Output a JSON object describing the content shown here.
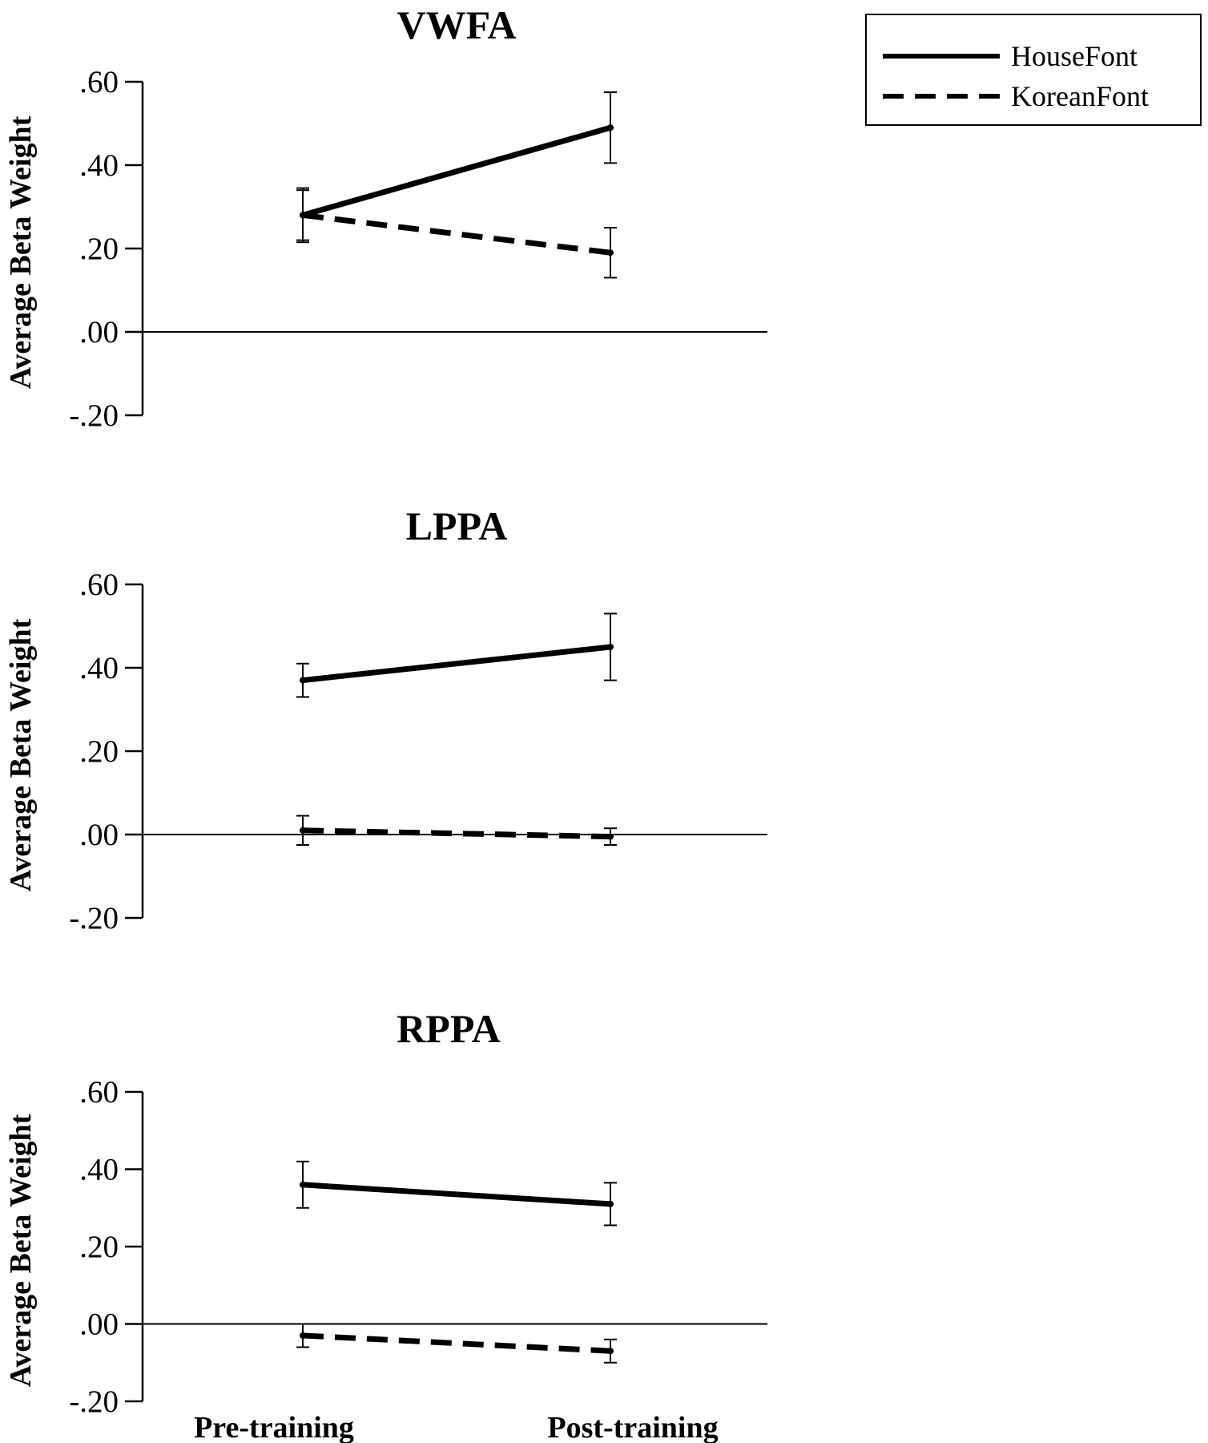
{
  "chart_data": {
    "type": "line",
    "legend": {
      "placement": "top-right",
      "entries": [
        {
          "name": "HouseFont",
          "style": "solid"
        },
        {
          "name": "KoreanFont",
          "style": "dashed"
        }
      ]
    },
    "categories": [
      "Pre-training",
      "Post-training"
    ],
    "y_tick_labels": [
      ".60",
      ".40",
      ".20",
      ".00",
      "-.20"
    ],
    "y_ticks": [
      0.6,
      0.4,
      0.2,
      0.0,
      -0.2
    ],
    "ylim": [
      -0.2,
      0.6
    ],
    "ylabel": "Average Beta Weight",
    "line_color": "#000000",
    "panels": [
      {
        "title": "VWFA",
        "series": [
          {
            "name": "HouseFont",
            "values": [
              0.28,
              0.49
            ],
            "error": [
              0.065,
              0.085
            ]
          },
          {
            "name": "KoreanFont",
            "values": [
              0.28,
              0.19
            ],
            "error": [
              0.06,
              0.06
            ]
          }
        ]
      },
      {
        "title": "LPPA",
        "series": [
          {
            "name": "HouseFont",
            "values": [
              0.37,
              0.45
            ],
            "error": [
              0.04,
              0.08
            ]
          },
          {
            "name": "KoreanFont",
            "values": [
              0.01,
              -0.005
            ],
            "error": [
              0.035,
              0.02
            ]
          }
        ]
      },
      {
        "title": "RPPA",
        "series": [
          {
            "name": "HouseFont",
            "values": [
              0.36,
              0.31
            ],
            "error": [
              0.06,
              0.055
            ]
          },
          {
            "name": "KoreanFont",
            "values": [
              -0.03,
              -0.07
            ],
            "error": [
              0.03,
              0.03
            ]
          }
        ]
      }
    ]
  }
}
